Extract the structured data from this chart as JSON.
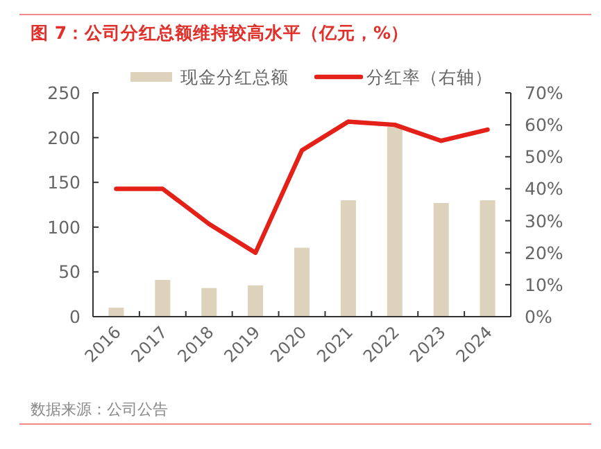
{
  "chart_data": {
    "type": "bar",
    "title": "图 7：公司分红总额维持较高水平（亿元，%）",
    "categories": [
      "2016",
      "2017",
      "2018",
      "2019",
      "2020",
      "2021",
      "2022",
      "2023",
      "2024"
    ],
    "series": [
      {
        "name": "现金分红总额",
        "color": "#ddd3bc",
        "values": [
          10,
          41,
          32,
          35,
          77,
          130,
          212,
          127,
          130
        ]
      },
      {
        "name": "分红率（右轴）",
        "type": "line",
        "axis": "y2",
        "color": "#e32119",
        "values": [
          40,
          40,
          29,
          20,
          52,
          61,
          60,
          55,
          58.5
        ]
      }
    ],
    "ylim": [
      0,
      250
    ],
    "yticks": [
      0,
      50,
      100,
      150,
      200,
      250
    ],
    "y2lim": [
      0,
      70
    ],
    "y2ticks": [
      {
        "value": 0,
        "label": "0%"
      },
      {
        "value": 10,
        "label": "10%"
      },
      {
        "value": 20,
        "label": "20%"
      },
      {
        "value": 30,
        "label": "30%"
      },
      {
        "value": 40,
        "label": "40%"
      },
      {
        "value": 50,
        "label": "50%"
      },
      {
        "value": 60,
        "label": "60%"
      },
      {
        "value": 70,
        "label": "70%"
      }
    ],
    "legend": "top",
    "grid": false,
    "marker": "none",
    "line_style": "solid",
    "annotations": [
      "数据来源：公司公告"
    ]
  }
}
